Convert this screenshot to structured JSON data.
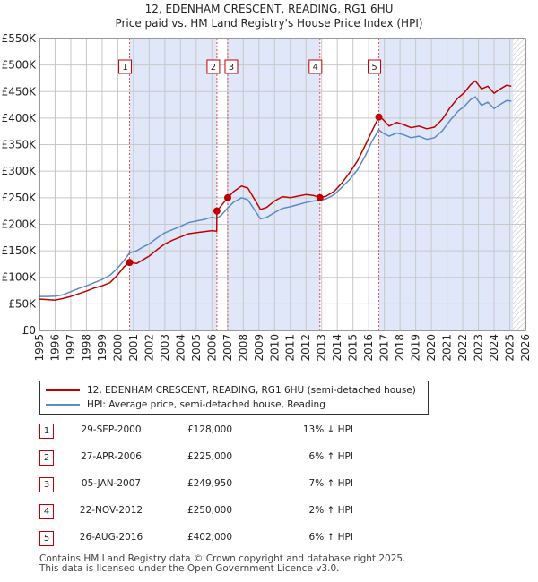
{
  "title_line1": "12, EDENHAM CRESCENT, READING, RG1 6HU",
  "title_line2": "Price paid vs. HM Land Registry's House Price Index (HPI)",
  "colors": {
    "property": "#c00000",
    "hpi": "#5b8ac6",
    "shade": "#dfe7f8",
    "grid": "#c8c8c8",
    "marker_line": "#e05050"
  },
  "chart_data": {
    "type": "line",
    "x_range": [
      1995,
      2026
    ],
    "y_range": [
      0,
      550000
    ],
    "x_ticks": [
      "1995",
      "1996",
      "1997",
      "1998",
      "1999",
      "2000",
      "2001",
      "2002",
      "2003",
      "2004",
      "2005",
      "2006",
      "2007",
      "2008",
      "2009",
      "2010",
      "2011",
      "2012",
      "2013",
      "2014",
      "2015",
      "2016",
      "2017",
      "2018",
      "2019",
      "2020",
      "2021",
      "2022",
      "2023",
      "2024",
      "2025",
      "2026"
    ],
    "y_ticks": [
      {
        "value": 0,
        "label": "£0"
      },
      {
        "value": 50000,
        "label": "£50K"
      },
      {
        "value": 100000,
        "label": "£100K"
      },
      {
        "value": 150000,
        "label": "£150K"
      },
      {
        "value": 200000,
        "label": "£200K"
      },
      {
        "value": 250000,
        "label": "£250K"
      },
      {
        "value": 300000,
        "label": "£300K"
      },
      {
        "value": 350000,
        "label": "£350K"
      },
      {
        "value": 400000,
        "label": "£400K"
      },
      {
        "value": 450000,
        "label": "£450K"
      },
      {
        "value": 500000,
        "label": "£500K"
      },
      {
        "value": 550000,
        "label": "£550K"
      }
    ],
    "shaded_ranges": [
      [
        2000.75,
        2006.32
      ],
      [
        2007.01,
        2012.89
      ],
      [
        2016.65,
        2025.2
      ]
    ],
    "hatched_from": 2025.2,
    "series": [
      {
        "name": "12, EDENHAM CRESCENT, READING, RG1 6HU (semi-detached house)",
        "color": "#c00000",
        "points": [
          [
            1995.0,
            59000
          ],
          [
            1995.5,
            58000
          ],
          [
            1996.0,
            57000
          ],
          [
            1996.5,
            60000
          ],
          [
            1997.0,
            64000
          ],
          [
            1997.5,
            69000
          ],
          [
            1998.0,
            74000
          ],
          [
            1998.5,
            80000
          ],
          [
            1999.0,
            84000
          ],
          [
            1999.5,
            90000
          ],
          [
            2000.0,
            105000
          ],
          [
            2000.4,
            120000
          ],
          [
            2000.75,
            128000
          ],
          [
            2001.2,
            126000
          ],
          [
            2001.6,
            133000
          ],
          [
            2002.0,
            140000
          ],
          [
            2002.5,
            152000
          ],
          [
            2003.0,
            163000
          ],
          [
            2003.5,
            170000
          ],
          [
            2004.0,
            176000
          ],
          [
            2004.5,
            182000
          ],
          [
            2005.0,
            184000
          ],
          [
            2005.5,
            186000
          ],
          [
            2006.0,
            188000
          ],
          [
            2006.31,
            187000
          ],
          [
            2006.32,
            225000
          ],
          [
            2006.6,
            235000
          ],
          [
            2007.01,
            249950
          ],
          [
            2007.4,
            262000
          ],
          [
            2007.9,
            272000
          ],
          [
            2008.3,
            268000
          ],
          [
            2008.7,
            248000
          ],
          [
            2009.1,
            228000
          ],
          [
            2009.5,
            232000
          ],
          [
            2010.0,
            244000
          ],
          [
            2010.5,
            252000
          ],
          [
            2011.0,
            250000
          ],
          [
            2011.5,
            253000
          ],
          [
            2012.0,
            256000
          ],
          [
            2012.5,
            254000
          ],
          [
            2012.89,
            250000
          ],
          [
            2013.3,
            253000
          ],
          [
            2013.8,
            262000
          ],
          [
            2014.3,
            278000
          ],
          [
            2014.8,
            298000
          ],
          [
            2015.3,
            320000
          ],
          [
            2015.8,
            350000
          ],
          [
            2016.2,
            375000
          ],
          [
            2016.65,
            402000
          ],
          [
            2016.9,
            398000
          ],
          [
            2017.3,
            385000
          ],
          [
            2017.8,
            392000
          ],
          [
            2018.2,
            388000
          ],
          [
            2018.7,
            382000
          ],
          [
            2019.2,
            385000
          ],
          [
            2019.7,
            380000
          ],
          [
            2020.2,
            383000
          ],
          [
            2020.7,
            398000
          ],
          [
            2021.2,
            420000
          ],
          [
            2021.7,
            438000
          ],
          [
            2022.1,
            448000
          ],
          [
            2022.5,
            463000
          ],
          [
            2022.8,
            470000
          ],
          [
            2023.2,
            455000
          ],
          [
            2023.6,
            460000
          ],
          [
            2024.0,
            447000
          ],
          [
            2024.4,
            455000
          ],
          [
            2024.8,
            462000
          ],
          [
            2025.1,
            460000
          ]
        ]
      },
      {
        "name": "HPI: Average price, semi-detached house, Reading",
        "color": "#5b8ac6",
        "points": [
          [
            1995.0,
            64000
          ],
          [
            1995.5,
            64000
          ],
          [
            1996.0,
            64500
          ],
          [
            1996.5,
            67000
          ],
          [
            1997.0,
            73000
          ],
          [
            1997.5,
            79000
          ],
          [
            1998.0,
            84000
          ],
          [
            1998.5,
            90000
          ],
          [
            1999.0,
            96000
          ],
          [
            1999.5,
            104000
          ],
          [
            2000.0,
            118000
          ],
          [
            2000.4,
            132000
          ],
          [
            2000.75,
            146000
          ],
          [
            2001.2,
            150000
          ],
          [
            2001.6,
            157000
          ],
          [
            2002.0,
            163000
          ],
          [
            2002.5,
            174000
          ],
          [
            2003.0,
            184000
          ],
          [
            2003.5,
            190000
          ],
          [
            2004.0,
            196000
          ],
          [
            2004.5,
            203000
          ],
          [
            2005.0,
            206000
          ],
          [
            2005.5,
            209000
          ],
          [
            2006.0,
            213000
          ],
          [
            2006.32,
            211000
          ],
          [
            2006.6,
            217000
          ],
          [
            2007.01,
            231000
          ],
          [
            2007.4,
            242000
          ],
          [
            2007.9,
            250000
          ],
          [
            2008.3,
            246000
          ],
          [
            2008.7,
            228000
          ],
          [
            2009.1,
            210000
          ],
          [
            2009.5,
            213000
          ],
          [
            2010.0,
            222000
          ],
          [
            2010.5,
            230000
          ],
          [
            2011.0,
            233000
          ],
          [
            2011.5,
            237000
          ],
          [
            2012.0,
            241000
          ],
          [
            2012.5,
            244000
          ],
          [
            2012.89,
            245000
          ],
          [
            2013.3,
            248000
          ],
          [
            2013.8,
            256000
          ],
          [
            2014.3,
            270000
          ],
          [
            2014.8,
            285000
          ],
          [
            2015.3,
            303000
          ],
          [
            2015.8,
            330000
          ],
          [
            2016.2,
            356000
          ],
          [
            2016.65,
            378000
          ],
          [
            2016.9,
            372000
          ],
          [
            2017.3,
            366000
          ],
          [
            2017.8,
            372000
          ],
          [
            2018.2,
            369000
          ],
          [
            2018.7,
            363000
          ],
          [
            2019.2,
            366000
          ],
          [
            2019.7,
            360000
          ],
          [
            2020.2,
            363000
          ],
          [
            2020.7,
            376000
          ],
          [
            2021.2,
            396000
          ],
          [
            2021.7,
            413000
          ],
          [
            2022.1,
            422000
          ],
          [
            2022.5,
            435000
          ],
          [
            2022.8,
            440000
          ],
          [
            2023.2,
            424000
          ],
          [
            2023.6,
            430000
          ],
          [
            2024.0,
            418000
          ],
          [
            2024.4,
            426000
          ],
          [
            2024.8,
            433000
          ],
          [
            2025.1,
            432000
          ]
        ]
      }
    ],
    "sales": [
      {
        "label": "1",
        "x": 2000.75,
        "price": 128000
      },
      {
        "label": "2",
        "x": 2006.32,
        "price": 225000
      },
      {
        "label": "3",
        "x": 2007.01,
        "price": 249950
      },
      {
        "label": "4",
        "x": 2012.89,
        "price": 250000
      },
      {
        "label": "5",
        "x": 2016.65,
        "price": 402000
      }
    ]
  },
  "legend": {
    "property_label": "12, EDENHAM CRESCENT, READING, RG1 6HU (semi-detached house)",
    "hpi_label": "HPI: Average price, semi-detached house, Reading"
  },
  "transactions": [
    {
      "num": "1",
      "date": "29-SEP-2000",
      "price": "£128,000",
      "hpi": "13% ↓ HPI"
    },
    {
      "num": "2",
      "date": "27-APR-2006",
      "price": "£225,000",
      "hpi": "6% ↑ HPI"
    },
    {
      "num": "3",
      "date": "05-JAN-2007",
      "price": "£249,950",
      "hpi": "7% ↑ HPI"
    },
    {
      "num": "4",
      "date": "22-NOV-2012",
      "price": "£250,000",
      "hpi": "2% ↑ HPI"
    },
    {
      "num": "5",
      "date": "26-AUG-2016",
      "price": "£402,000",
      "hpi": "6% ↑ HPI"
    }
  ],
  "footer": {
    "line1": "Contains HM Land Registry data © Crown copyright and database right 2025.",
    "line2": "This data is licensed under the Open Government Licence v3.0."
  }
}
